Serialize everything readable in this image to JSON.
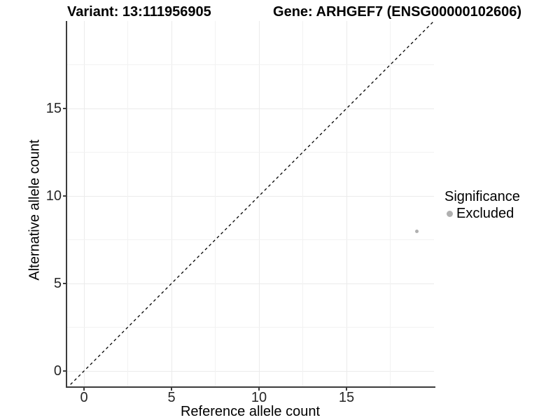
{
  "chart_data": {
    "type": "scatter",
    "title_left": "Variant: 13:111956905",
    "title_right": "Gene: ARHGEF7 (ENSG00000102606)",
    "xlabel": "Reference allele count",
    "ylabel": "Alternative allele count",
    "xlim": [
      -1,
      20
    ],
    "ylim": [
      -1,
      20
    ],
    "x_ticks": [
      0,
      5,
      10,
      15
    ],
    "y_ticks": [
      0,
      5,
      10,
      15
    ],
    "minor_gridlines": [
      2.5,
      7.5,
      12.5,
      17.5
    ],
    "grid": "major_and_minor",
    "identity_line": {
      "equation": "y = x",
      "style": "dashed",
      "color": "#000000"
    },
    "series": [
      {
        "name": "Excluded",
        "color": "#b0b0b0",
        "marker": "circle",
        "points": [
          {
            "x": 19,
            "y": 8
          }
        ]
      }
    ],
    "legend": {
      "title": "Significance",
      "position": "right",
      "entries": [
        {
          "label": "Excluded",
          "color": "#b0b0b0",
          "marker": "circle"
        }
      ]
    }
  },
  "colors": {
    "background": "#ffffff",
    "axis_line": "#3c3c3c",
    "gridline_major": "#ebebeb",
    "gridline_minor": "#f2f2f2",
    "tick_label": "#262626",
    "title_text": "#000000",
    "point": "#b0b0b0",
    "identity_line": "#000000"
  }
}
